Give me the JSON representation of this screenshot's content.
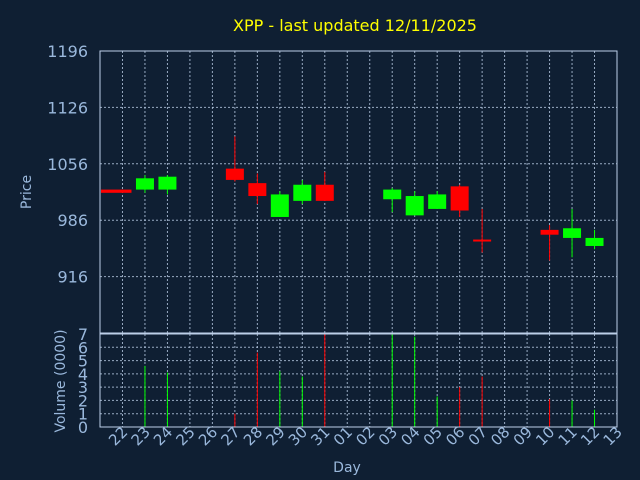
{
  "chart_data": {
    "type": "candlestick",
    "title": "XPP - last updated 12/11/2025",
    "xlabel": "Day",
    "ylabel": "Price",
    "volume_ylabel": "Volume (0000)",
    "price_ylim": [
      846,
      1196
    ],
    "price_ticks": [
      "1196",
      "1126",
      "1056",
      "986",
      "916"
    ],
    "volume_ylim": [
      0,
      7
    ],
    "volume_ticks": [
      "0",
      "1",
      "2",
      "3",
      "4",
      "5",
      "6",
      "7"
    ],
    "grid": true,
    "categories": [
      "22",
      "23",
      "24",
      "25",
      "26",
      "27",
      "28",
      "29",
      "30",
      "31",
      "01",
      "02",
      "03",
      "04",
      "05",
      "06",
      "07",
      "08",
      "09",
      "10",
      "11",
      "12",
      "13"
    ],
    "ohlc": [
      {
        "day": "22",
        "open": 1024,
        "high": 1024,
        "low": 1020,
        "close": 1020
      },
      {
        "day": "23",
        "open": 1024,
        "high": 1042,
        "low": 1020,
        "close": 1038
      },
      {
        "day": "24",
        "open": 1024,
        "high": 1042,
        "low": 1018,
        "close": 1040
      },
      {
        "day": "27",
        "open": 1050,
        "high": 1090,
        "low": 1034,
        "close": 1036
      },
      {
        "day": "28",
        "open": 1032,
        "high": 1044,
        "low": 1006,
        "close": 1016
      },
      {
        "day": "29",
        "open": 990,
        "high": 1022,
        "low": 990,
        "close": 1018
      },
      {
        "day": "30",
        "open": 1010,
        "high": 1036,
        "low": 1006,
        "close": 1030
      },
      {
        "day": "31",
        "open": 1030,
        "high": 1046,
        "low": 1010,
        "close": 1010
      },
      {
        "day": "03",
        "open": 1012,
        "high": 1026,
        "low": 996,
        "close": 1024
      },
      {
        "day": "04",
        "open": 992,
        "high": 1022,
        "low": 992,
        "close": 1016
      },
      {
        "day": "05",
        "open": 1000,
        "high": 1022,
        "low": 1000,
        "close": 1018
      },
      {
        "day": "06",
        "open": 1028,
        "high": 1030,
        "low": 990,
        "close": 998
      },
      {
        "day": "07",
        "open": 962,
        "high": 1000,
        "low": 946,
        "close": 960
      },
      {
        "day": "10",
        "open": 974,
        "high": 980,
        "low": 936,
        "close": 968
      },
      {
        "day": "11",
        "open": 964,
        "high": 1000,
        "low": 940,
        "close": 976
      },
      {
        "day": "12",
        "open": 954,
        "high": 974,
        "low": 950,
        "close": 964
      }
    ],
    "volume": [
      {
        "day": "23",
        "value": 4.6,
        "dir": "up"
      },
      {
        "day": "24",
        "value": 4.1,
        "dir": "up"
      },
      {
        "day": "27",
        "value": 1.0,
        "dir": "down"
      },
      {
        "day": "28",
        "value": 5.6,
        "dir": "down"
      },
      {
        "day": "29",
        "value": 4.2,
        "dir": "up"
      },
      {
        "day": "30",
        "value": 3.8,
        "dir": "up"
      },
      {
        "day": "31",
        "value": 7.0,
        "dir": "down"
      },
      {
        "day": "03",
        "value": 7.0,
        "dir": "up"
      },
      {
        "day": "04",
        "value": 6.8,
        "dir": "up"
      },
      {
        "day": "05",
        "value": 2.3,
        "dir": "up"
      },
      {
        "day": "06",
        "value": 3.0,
        "dir": "down"
      },
      {
        "day": "07",
        "value": 3.8,
        "dir": "down"
      },
      {
        "day": "10",
        "value": 2.1,
        "dir": "down"
      },
      {
        "day": "11",
        "value": 2.0,
        "dir": "up"
      },
      {
        "day": "12",
        "value": 1.3,
        "dir": "up"
      }
    ],
    "colors": {
      "background": "#0f1f33",
      "title": "#ffff00",
      "axis_text": "#9ab8dc",
      "frame": "#bccfe8",
      "grid": "#bccfe8",
      "up": "#00ff00",
      "down": "#ff0000"
    }
  }
}
